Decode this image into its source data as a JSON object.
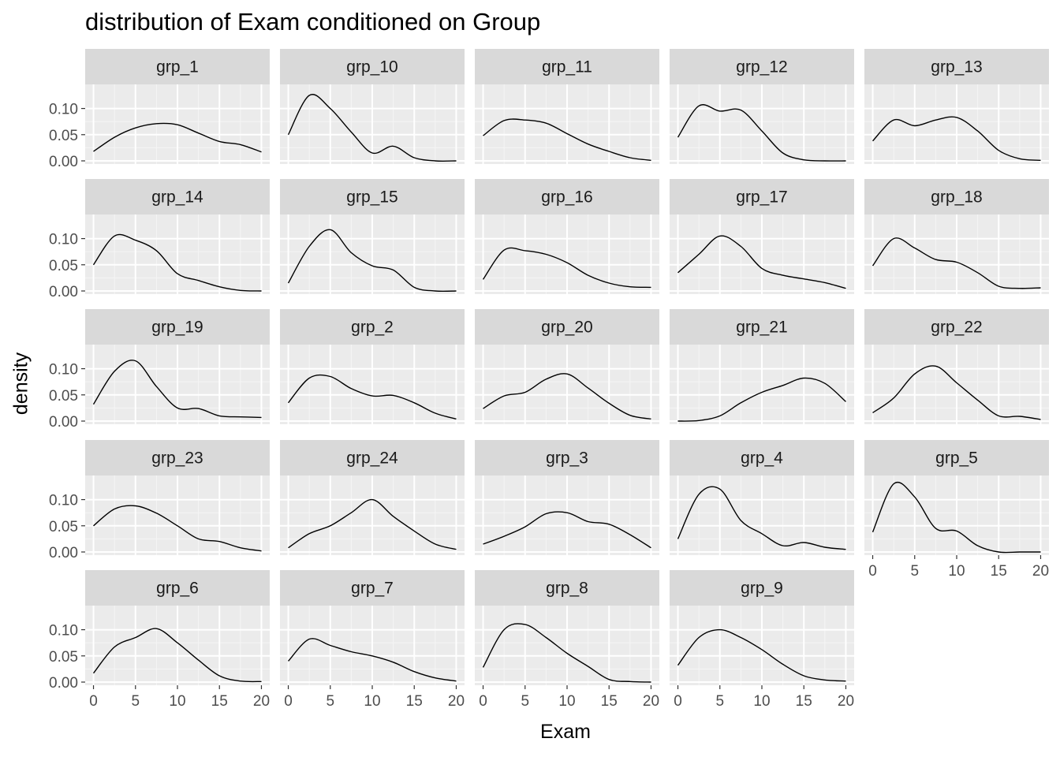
{
  "chart_data": {
    "type": "line",
    "title": "distribution of Exam conditioned on Group",
    "xlabel": "Exam",
    "ylabel": "density",
    "xlim": [
      0,
      20
    ],
    "ylim": [
      0,
      0.14
    ],
    "x_ticks": [
      0,
      5,
      10,
      15,
      20
    ],
    "y_ticks": [
      0.0,
      0.05,
      0.1
    ],
    "y_tick_labels": [
      "0.00",
      "0.05",
      "0.10"
    ],
    "grid": true,
    "layout": "facet_wrap 5 columns",
    "x": [
      0,
      2.5,
      5,
      7.5,
      10,
      12.5,
      15,
      17.5,
      20
    ],
    "series": [
      {
        "name": "grp_1",
        "values": [
          0.018,
          0.045,
          0.063,
          0.071,
          0.069,
          0.053,
          0.037,
          0.031,
          0.017
        ]
      },
      {
        "name": "grp_10",
        "values": [
          0.05,
          0.125,
          0.1,
          0.055,
          0.015,
          0.028,
          0.006,
          0.0,
          0.0
        ]
      },
      {
        "name": "grp_11",
        "values": [
          0.048,
          0.077,
          0.078,
          0.072,
          0.052,
          0.032,
          0.018,
          0.006,
          0.001
        ]
      },
      {
        "name": "grp_12",
        "values": [
          0.045,
          0.105,
          0.095,
          0.097,
          0.057,
          0.015,
          0.002,
          0.0,
          0.0
        ]
      },
      {
        "name": "grp_13",
        "values": [
          0.038,
          0.078,
          0.067,
          0.078,
          0.083,
          0.057,
          0.02,
          0.004,
          0.001
        ]
      },
      {
        "name": "grp_14",
        "values": [
          0.05,
          0.105,
          0.097,
          0.077,
          0.033,
          0.02,
          0.008,
          0.001,
          0.0
        ]
      },
      {
        "name": "grp_15",
        "values": [
          0.015,
          0.085,
          0.117,
          0.073,
          0.048,
          0.04,
          0.007,
          0.0,
          0.0
        ]
      },
      {
        "name": "grp_16",
        "values": [
          0.022,
          0.078,
          0.077,
          0.07,
          0.054,
          0.03,
          0.015,
          0.008,
          0.007
        ]
      },
      {
        "name": "grp_17",
        "values": [
          0.035,
          0.07,
          0.105,
          0.085,
          0.043,
          0.03,
          0.023,
          0.016,
          0.005
        ]
      },
      {
        "name": "grp_18",
        "values": [
          0.048,
          0.1,
          0.082,
          0.06,
          0.055,
          0.035,
          0.009,
          0.005,
          0.006
        ]
      },
      {
        "name": "grp_19",
        "values": [
          0.032,
          0.095,
          0.115,
          0.066,
          0.025,
          0.024,
          0.01,
          0.008,
          0.007
        ]
      },
      {
        "name": "grp_2",
        "values": [
          0.035,
          0.082,
          0.085,
          0.062,
          0.048,
          0.049,
          0.035,
          0.015,
          0.004
        ]
      },
      {
        "name": "grp_20",
        "values": [
          0.024,
          0.048,
          0.055,
          0.08,
          0.09,
          0.063,
          0.034,
          0.011,
          0.004
        ]
      },
      {
        "name": "grp_21",
        "values": [
          0.0,
          0.001,
          0.01,
          0.035,
          0.055,
          0.068,
          0.082,
          0.072,
          0.037
        ]
      },
      {
        "name": "grp_22",
        "values": [
          0.016,
          0.044,
          0.09,
          0.105,
          0.073,
          0.04,
          0.01,
          0.009,
          0.003
        ]
      },
      {
        "name": "grp_23",
        "values": [
          0.05,
          0.082,
          0.088,
          0.074,
          0.05,
          0.025,
          0.02,
          0.008,
          0.002
        ]
      },
      {
        "name": "grp_24",
        "values": [
          0.008,
          0.035,
          0.05,
          0.075,
          0.1,
          0.068,
          0.04,
          0.015,
          0.005
        ]
      },
      {
        "name": "grp_3",
        "values": [
          0.015,
          0.03,
          0.048,
          0.073,
          0.075,
          0.058,
          0.053,
          0.033,
          0.008
        ]
      },
      {
        "name": "grp_4",
        "values": [
          0.025,
          0.11,
          0.12,
          0.06,
          0.035,
          0.012,
          0.018,
          0.009,
          0.005
        ]
      },
      {
        "name": "grp_5",
        "values": [
          0.038,
          0.13,
          0.105,
          0.045,
          0.04,
          0.012,
          0.0,
          0.0,
          0.0
        ]
      },
      {
        "name": "grp_6",
        "values": [
          0.017,
          0.067,
          0.085,
          0.102,
          0.075,
          0.042,
          0.012,
          0.002,
          0.001
        ]
      },
      {
        "name": "grp_7",
        "values": [
          0.04,
          0.082,
          0.07,
          0.058,
          0.05,
          0.038,
          0.02,
          0.008,
          0.002
        ]
      },
      {
        "name": "grp_8",
        "values": [
          0.028,
          0.1,
          0.11,
          0.085,
          0.055,
          0.03,
          0.005,
          0.001,
          0.0
        ]
      },
      {
        "name": "grp_9",
        "values": [
          0.032,
          0.085,
          0.1,
          0.085,
          0.062,
          0.034,
          0.012,
          0.004,
          0.002
        ]
      }
    ]
  }
}
